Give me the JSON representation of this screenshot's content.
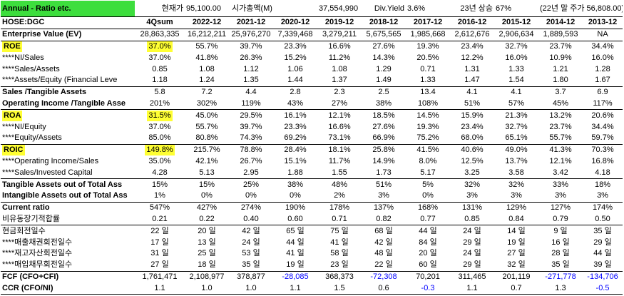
{
  "header": {
    "banner": "Annual - Ratio etc.",
    "price_label": "현재가",
    "price_value": "95,100.00",
    "mcap_label": "시가총액(M)",
    "mcap_value": "37,554,990",
    "dy_label": "Div.Yield",
    "dy_value": "3.6%",
    "rise_label": "23년 상승",
    "rise_value": "67%",
    "lastprice": "(22년 말 주가 56,808.00)"
  },
  "columns": [
    "HOSE:DGC",
    "4Qsum",
    "2022-12",
    "2021-12",
    "2020-12",
    "2019-12",
    "2018-12",
    "2017-12",
    "2016-12",
    "2015-12",
    "2014-12",
    "2013-12"
  ],
  "colors": {
    "banner": "#3dde3d",
    "highlight": "#ffff33",
    "negative": "#0000ff"
  },
  "rows": [
    {
      "label": "Enterprise Value (EV)",
      "v": [
        "28,863,335",
        "16,212,211",
        "25,976,270",
        "7,339,468",
        "3,279,211",
        "5,675,565",
        "1,985,668",
        "2,612,676",
        "2,906,634",
        "1,889,593",
        "NA"
      ]
    },
    {
      "label": "ROE",
      "v": [
        "37.0%",
        "55.7%",
        "39.7%",
        "23.3%",
        "16.6%",
        "27.6%",
        "19.3%",
        "23.4%",
        "32.7%",
        "23.7%",
        "34.4%"
      ]
    },
    {
      "label": "****NI/Sales",
      "v": [
        "37.0%",
        "41.8%",
        "26.3%",
        "15.2%",
        "11.2%",
        "14.3%",
        "20.5%",
        "12.2%",
        "16.0%",
        "10.9%",
        "16.0%"
      ]
    },
    {
      "label": "****Sales/Assets",
      "v": [
        "0.85",
        "1.08",
        "1.12",
        "1.06",
        "1.08",
        "1.29",
        "0.71",
        "1.31",
        "1.33",
        "1.21",
        "1.28"
      ]
    },
    {
      "label": "****Assets/Equity (Financial Leve",
      "v": [
        "1.18",
        "1.24",
        "1.35",
        "1.44",
        "1.37",
        "1.49",
        "1.33",
        "1.47",
        "1.54",
        "1.80",
        "1.67"
      ]
    },
    {
      "label": "Sales /Tangible Assets",
      "v": [
        "5.8",
        "7.2",
        "4.4",
        "2.8",
        "2.3",
        "2.5",
        "13.4",
        "4.1",
        "4.1",
        "3.7",
        "6.9"
      ]
    },
    {
      "label": "Operating Income /Tangible Asse",
      "v": [
        "201%",
        "302%",
        "119%",
        "43%",
        "27%",
        "38%",
        "108%",
        "51%",
        "57%",
        "45%",
        "117%"
      ]
    },
    {
      "label": "ROA",
      "v": [
        "31.5%",
        "45.0%",
        "29.5%",
        "16.1%",
        "12.1%",
        "18.5%",
        "14.5%",
        "15.9%",
        "21.3%",
        "13.2%",
        "20.6%"
      ]
    },
    {
      "label": "****NI/Equity",
      "v": [
        "37.0%",
        "55.7%",
        "39.7%",
        "23.3%",
        "16.6%",
        "27.6%",
        "19.3%",
        "23.4%",
        "32.7%",
        "23.7%",
        "34.4%"
      ]
    },
    {
      "label": "****Equity/Assets",
      "v": [
        "85.0%",
        "80.8%",
        "74.3%",
        "69.2%",
        "73.1%",
        "66.9%",
        "75.2%",
        "68.0%",
        "65.1%",
        "55.7%",
        "59.7%"
      ]
    },
    {
      "label": "ROIC",
      "v": [
        "149.8%",
        "215.7%",
        "78.8%",
        "28.4%",
        "18.1%",
        "25.8%",
        "41.5%",
        "40.6%",
        "49.0%",
        "41.3%",
        "70.3%"
      ]
    },
    {
      "label": "****Operating Income/Sales",
      "v": [
        "35.0%",
        "42.1%",
        "26.7%",
        "15.1%",
        "11.7%",
        "14.9%",
        "8.0%",
        "12.5%",
        "13.7%",
        "12.1%",
        "16.8%"
      ]
    },
    {
      "label": "****Sales/Invested Capital",
      "v": [
        "4.28",
        "5.13",
        "2.95",
        "1.88",
        "1.55",
        "1.73",
        "5.17",
        "3.25",
        "3.58",
        "3.42",
        "4.18"
      ]
    },
    {
      "label": "Tangible Assets out of Total Ass",
      "v": [
        "15%",
        "15%",
        "25%",
        "38%",
        "48%",
        "51%",
        "5%",
        "32%",
        "32%",
        "33%",
        "18%"
      ]
    },
    {
      "label": "Intangible Assets out of Total Ass",
      "v": [
        "1%",
        "0%",
        "0%",
        "0%",
        "2%",
        "3%",
        "0%",
        "3%",
        "3%",
        "3%",
        "3%"
      ]
    },
    {
      "label": "Current ratio",
      "v": [
        "547%",
        "427%",
        "274%",
        "190%",
        "178%",
        "137%",
        "168%",
        "131%",
        "129%",
        "127%",
        "174%"
      ]
    },
    {
      "label": "비유동장기적합률",
      "v": [
        "0.21",
        "0.22",
        "0.40",
        "0.60",
        "0.71",
        "0.82",
        "0.77",
        "0.85",
        "0.84",
        "0.79",
        "0.50"
      ]
    },
    {
      "label": "현금회전일수",
      "v": [
        "22 일",
        "20 일",
        "42 일",
        "65 일",
        "75 일",
        "68 일",
        "44 일",
        "24 일",
        "14 일",
        "9 일",
        "35 일"
      ]
    },
    {
      "label": "****매출채권회전일수",
      "v": [
        "17 일",
        "13 일",
        "24 일",
        "44 일",
        "41 일",
        "42 일",
        "84 일",
        "29 일",
        "19 일",
        "16 일",
        "29 일"
      ]
    },
    {
      "label": "****재고자산회전일수",
      "v": [
        "31 일",
        "25 일",
        "53 일",
        "41 일",
        "58 일",
        "48 일",
        "20 일",
        "24 일",
        "27 일",
        "28 일",
        "44 일"
      ]
    },
    {
      "label": "****매입채무회전일수",
      "v": [
        "27 일",
        "18 일",
        "35 일",
        "19 일",
        "23 일",
        "22 일",
        "60 일",
        "29 일",
        "32 일",
        "35 일",
        "39 일"
      ]
    },
    {
      "label": "FCF (CFO+CFI)",
      "v": [
        "1,761,471",
        "2,108,977",
        "378,877",
        "-28,085",
        "368,373",
        "-72,308",
        "70,201",
        "311,465",
        "201,119",
        "-271,778",
        "-134,706"
      ]
    },
    {
      "label": "CCR (CFO/NI)",
      "v": [
        "1.1",
        "1.0",
        "1.0",
        "1.1",
        "1.5",
        "0.6",
        "-0.3",
        "1.1",
        "0.7",
        "1.3",
        "-0.5"
      ]
    }
  ]
}
